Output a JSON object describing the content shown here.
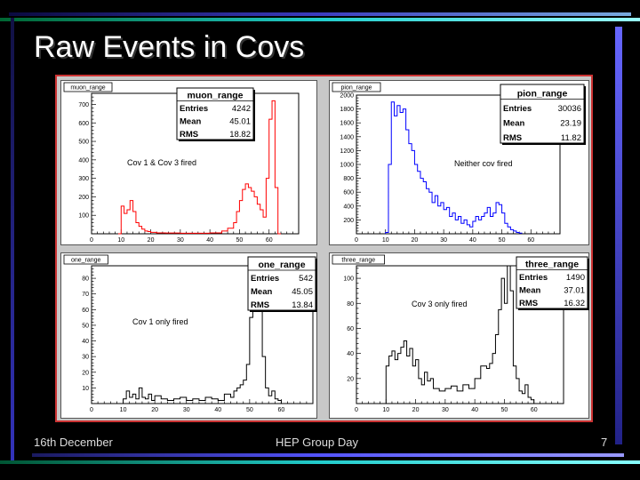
{
  "slide": {
    "title": "Raw Events in Covs",
    "footer_left": "16th December",
    "footer_center": "HEP Group Day",
    "page_number": "7"
  },
  "colors": {
    "background": "#000000",
    "frame": "#cc3333",
    "muon_line": "#ff0000",
    "pion_line": "#0000ff",
    "one_line": "#000000",
    "three_line": "#000000"
  },
  "chart_data": [
    {
      "type": "line",
      "name": "muon_range",
      "tab_label": "muon_range",
      "stats_title": "muon_range",
      "stats": [
        {
          "label": "Entries",
          "value": "4242"
        },
        {
          "label": "Mean",
          "value": "45.01"
        },
        {
          "label": "RMS",
          "value": "18.82"
        }
      ],
      "annotation": "Cov 1 & Cov 3 fired",
      "xlim": [
        0,
        70
      ],
      "ylim": [
        0,
        760
      ],
      "xticks": [
        0,
        10,
        20,
        30,
        40,
        50,
        60
      ],
      "yticks": [
        100,
        200,
        300,
        400,
        500,
        600,
        700
      ],
      "x": [
        9,
        10,
        11,
        12,
        13,
        14,
        15,
        16,
        17,
        18,
        19,
        20,
        22,
        25,
        30,
        35,
        40,
        44,
        46,
        48,
        49,
        50,
        51,
        52,
        53,
        54,
        55,
        56,
        57,
        58,
        59,
        60,
        61,
        62,
        63
      ],
      "values": [
        0,
        150,
        110,
        130,
        180,
        120,
        60,
        40,
        25,
        15,
        12,
        8,
        5,
        4,
        3,
        3,
        5,
        15,
        30,
        60,
        120,
        180,
        240,
        270,
        250,
        230,
        200,
        160,
        130,
        90,
        300,
        620,
        720,
        250,
        0
      ]
    },
    {
      "type": "line",
      "name": "pion_range",
      "tab_label": "pion_range",
      "stats_title": "pion_range",
      "stats": [
        {
          "label": "Entries",
          "value": "30036"
        },
        {
          "label": "Mean",
          "value": "23.19"
        },
        {
          "label": "RMS",
          "value": "11.82"
        }
      ],
      "annotation": "Neither cov fired",
      "xlim": [
        0,
        70
      ],
      "ylim": [
        0,
        2000
      ],
      "xticks": [
        0,
        10,
        20,
        30,
        40,
        50,
        60
      ],
      "yticks": [
        200,
        400,
        600,
        800,
        1000,
        1200,
        1400,
        1600,
        1800,
        2000
      ],
      "x": [
        10,
        11,
        12,
        13,
        14,
        15,
        16,
        17,
        18,
        19,
        20,
        21,
        22,
        23,
        24,
        25,
        26,
        27,
        28,
        29,
        30,
        31,
        32,
        33,
        34,
        35,
        36,
        37,
        38,
        39,
        40,
        41,
        42,
        43,
        44,
        45,
        46,
        47,
        48,
        49,
        50,
        51,
        52,
        53,
        54,
        55,
        56
      ],
      "values": [
        20,
        1000,
        1900,
        1700,
        1850,
        1750,
        1800,
        1500,
        1300,
        1200,
        1000,
        900,
        800,
        750,
        650,
        600,
        450,
        550,
        400,
        450,
        350,
        380,
        250,
        300,
        200,
        250,
        150,
        200,
        130,
        100,
        180,
        250,
        200,
        250,
        300,
        380,
        250,
        300,
        450,
        420,
        300,
        150,
        100,
        60,
        40,
        20,
        10
      ]
    },
    {
      "type": "line",
      "name": "one_range",
      "tab_label": "one_range",
      "stats_title": "one_range",
      "stats": [
        {
          "label": "Entries",
          "value": "542"
        },
        {
          "label": "Mean",
          "value": "45.05"
        },
        {
          "label": "RMS",
          "value": "13.84"
        }
      ],
      "annotation": "Cov 1 only fired",
      "xlim": [
        0,
        70
      ],
      "ylim": [
        0,
        88
      ],
      "xticks": [
        0,
        10,
        20,
        30,
        40,
        50,
        60
      ],
      "yticks": [
        10,
        20,
        30,
        40,
        50,
        60,
        70,
        80
      ],
      "x": [
        9,
        10,
        11,
        12,
        13,
        14,
        15,
        16,
        17,
        18,
        19,
        20,
        22,
        24,
        26,
        28,
        30,
        32,
        34,
        36,
        38,
        40,
        42,
        44,
        45,
        46,
        47,
        48,
        49,
        50,
        51,
        52,
        53,
        54,
        55,
        56,
        57,
        58,
        59,
        60
      ],
      "values": [
        0,
        3,
        8,
        4,
        6,
        3,
        10,
        4,
        3,
        6,
        2,
        5,
        3,
        2,
        3,
        4,
        2,
        3,
        2,
        4,
        3,
        2,
        6,
        4,
        8,
        10,
        12,
        15,
        25,
        55,
        75,
        82,
        70,
        30,
        10,
        5,
        8,
        3,
        2,
        0
      ]
    },
    {
      "type": "line",
      "name": "three_range",
      "tab_label": "three_range",
      "stats_title": "three_range",
      "stats": [
        {
          "label": "Entries",
          "value": "1490"
        },
        {
          "label": "Mean",
          "value": "37.01"
        },
        {
          "label": "RMS",
          "value": "16.32"
        }
      ],
      "annotation": "Cov 3 only fired",
      "xlim": [
        0,
        70
      ],
      "ylim": [
        0,
        110
      ],
      "xticks": [
        0,
        10,
        20,
        30,
        40,
        50,
        60
      ],
      "yticks": [
        20,
        40,
        60,
        80,
        100
      ],
      "x": [
        9,
        10,
        11,
        12,
        13,
        14,
        15,
        16,
        17,
        18,
        19,
        20,
        21,
        22,
        23,
        24,
        25,
        26,
        28,
        30,
        32,
        34,
        36,
        38,
        40,
        42,
        44,
        45,
        46,
        47,
        48,
        49,
        50,
        51,
        52,
        53,
        54,
        55,
        56,
        57,
        58,
        59,
        60
      ],
      "values": [
        0,
        30,
        38,
        42,
        35,
        40,
        45,
        50,
        38,
        44,
        30,
        35,
        20,
        15,
        25,
        18,
        20,
        12,
        10,
        12,
        14,
        10,
        15,
        12,
        20,
        30,
        28,
        32,
        40,
        55,
        75,
        100,
        80,
        110,
        90,
        30,
        20,
        10,
        8,
        15,
        5,
        3,
        0
      ]
    }
  ]
}
